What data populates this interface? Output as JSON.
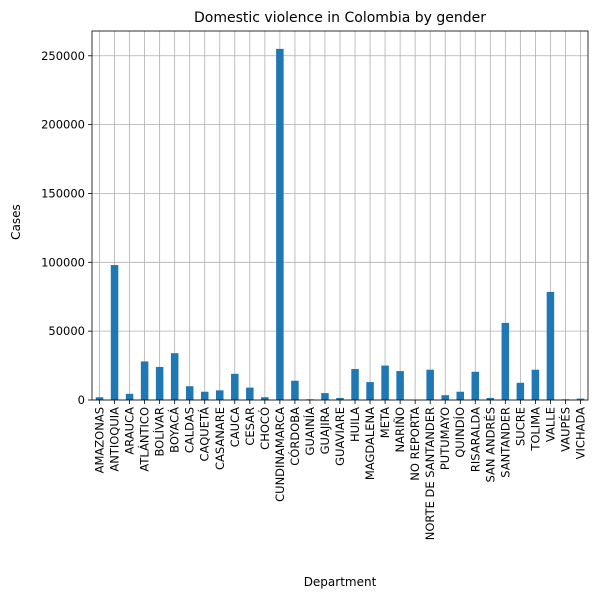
{
  "chart_data": {
    "type": "bar",
    "title": "Domestic violence in Colombia by gender",
    "xlabel": "Department",
    "ylabel": "Cases",
    "ylim": [
      0,
      268000
    ],
    "yticks": [
      0,
      50000,
      100000,
      150000,
      200000,
      250000
    ],
    "grid": true,
    "bar_color": "#1f77b4",
    "categories": [
      "AMAZONAS",
      "ANTIOQUIA",
      "ARAUCA",
      "ATLÁNTICO",
      "BOLÍVAR",
      "BOYACÁ",
      "CALDAS",
      "CAQUETÁ",
      "CASANARE",
      "CAUCA",
      "CESAR",
      "CHOCÓ",
      "CUNDINAMARCA",
      "CÓRDOBA",
      "GUAINÍA",
      "GUAJIRA",
      "GUAVIARE",
      "HUILA",
      "MAGDALENA",
      "META",
      "NARIÑO",
      "NO REPORTA",
      "NORTE DE SANTANDER",
      "PUTUMAYO",
      "QUINDÍO",
      "RISARALDA",
      "SAN ANDRÉS",
      "SANTANDER",
      "SUCRE",
      "TOLIMA",
      "VALLE",
      "VAUPÉS",
      "VICHADA"
    ],
    "values": [
      2000,
      98000,
      4500,
      28000,
      24000,
      34000,
      10000,
      6000,
      7000,
      19000,
      9000,
      2000,
      255000,
      14000,
      500,
      5000,
      1500,
      22500,
      13000,
      25000,
      21000,
      0,
      22000,
      3500,
      6000,
      20500,
      1500,
      56000,
      12500,
      22000,
      78500,
      500,
      1000
    ]
  }
}
